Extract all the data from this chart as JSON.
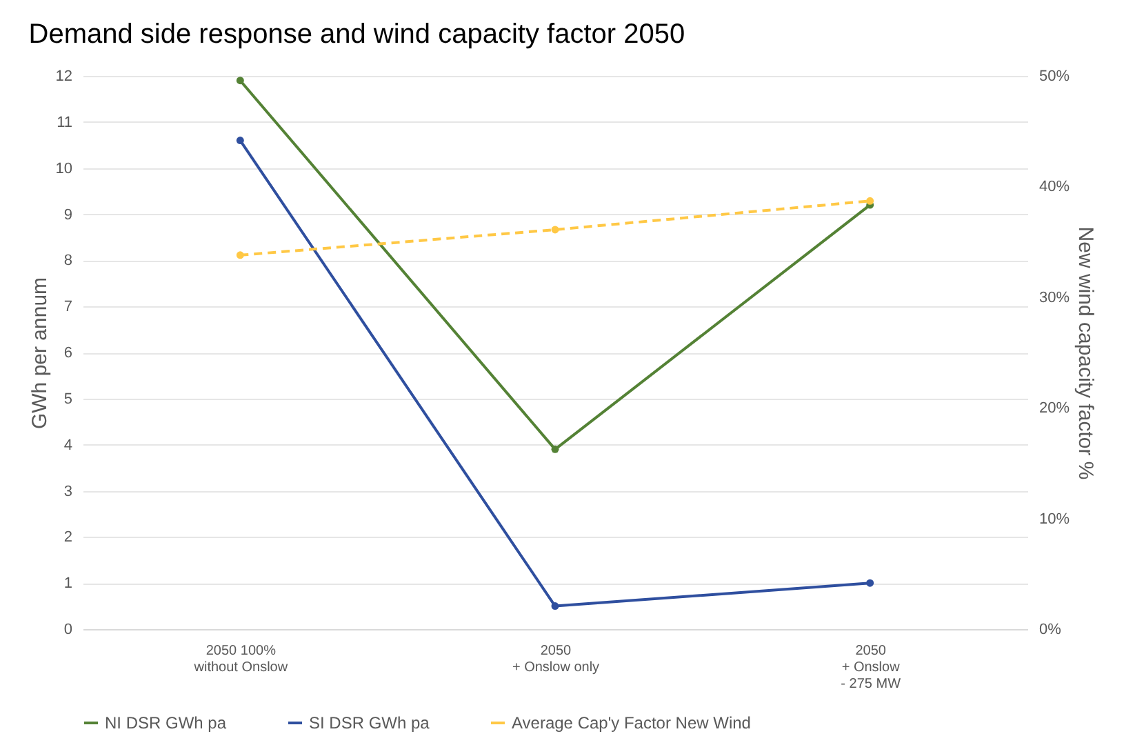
{
  "chart_data": {
    "type": "line",
    "title": "Demand side response and wind capacity factor 2050",
    "categories": [
      "2050 100%\nwithout Onslow",
      "2050\n+ Onslow only",
      "2050\n+ Onslow\n- 275 MW"
    ],
    "series": [
      {
        "name": "NI DSR GWh pa",
        "color": "#548235",
        "values": [
          11.9,
          3.9,
          9.2
        ]
      },
      {
        "name": "SI DSR GWh pa",
        "color": "#2f4f9f",
        "values": [
          10.6,
          0.5,
          1.0
        ]
      },
      {
        "name": "Average Cap'y Factor New Wind",
        "color": "#ffc845",
        "values": [
          33.8,
          36.1,
          38.7
        ],
        "axis": "y2",
        "line_style": "dashed"
      }
    ],
    "ylabel": "GWh per annum",
    "y2label": "New wind capacity factor %",
    "ylim": [
      0,
      12
    ],
    "yticks": [
      0,
      1,
      2,
      3,
      4,
      5,
      6,
      7,
      8,
      9,
      10,
      11,
      12
    ],
    "y2lim": [
      0,
      50
    ],
    "y2ticks": [
      {
        "value": 0,
        "label": "0%"
      },
      {
        "value": 10,
        "label": "10%"
      },
      {
        "value": 20,
        "label": "20%"
      },
      {
        "value": 30,
        "label": "30%"
      },
      {
        "value": 40,
        "label": "40%"
      },
      {
        "value": 50,
        "label": "50%"
      }
    ],
    "grid": "y",
    "legend": "bottom",
    "marker": "circle",
    "line_style": "solid"
  }
}
